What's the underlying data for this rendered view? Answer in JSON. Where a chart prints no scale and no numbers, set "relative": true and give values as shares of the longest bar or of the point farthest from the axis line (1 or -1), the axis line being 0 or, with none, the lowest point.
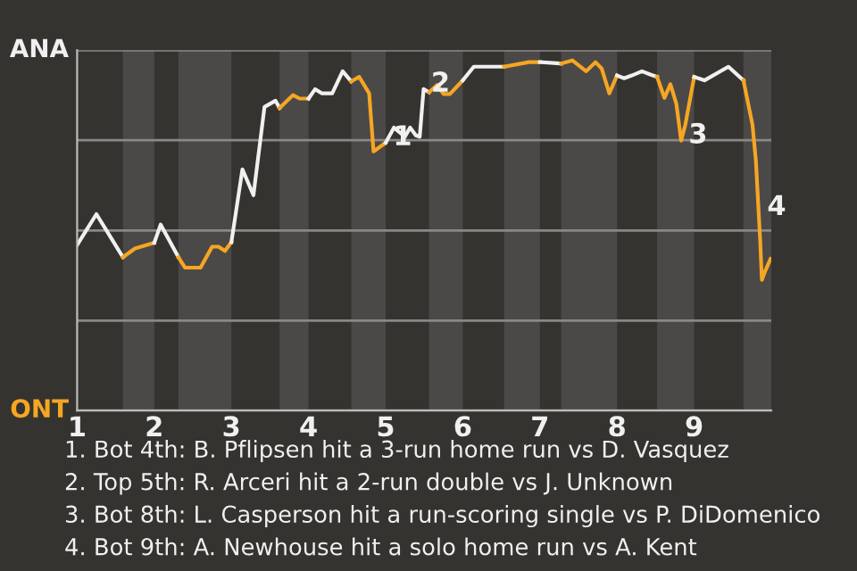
{
  "chart_data": {
    "type": "line",
    "relative": true,
    "xlim": [
      1,
      10
    ],
    "xticks": [
      1,
      2,
      3,
      4,
      5,
      6,
      7,
      8,
      9
    ],
    "series": [
      {
        "color": "#f0f0f0",
        "x": [
          1,
          1.25,
          1.594
        ],
        "values": [
          0.473,
          0.561,
          0.438
        ]
      },
      {
        "color": "#f5a623",
        "x": [
          1.594,
          1.75,
          2
        ],
        "values": [
          0.438,
          0.463,
          0.479
        ]
      },
      {
        "color": "#f0f0f0",
        "x": [
          2,
          2.083,
          2.313
        ],
        "values": [
          0.479,
          0.531,
          0.438
        ]
      },
      {
        "color": "#f5a623",
        "x": [
          2.313,
          2.4,
          2.6,
          2.75,
          2.833,
          2.917,
          3
        ],
        "values": [
          0.438,
          0.408,
          0.408,
          0.468,
          0.468,
          0.456,
          0.481
        ]
      },
      {
        "color": "#f0f0f0",
        "x": [
          3,
          3.143,
          3.286,
          3.429,
          3.571,
          3.625
        ],
        "values": [
          0.481,
          0.689,
          0.615,
          0.867,
          0.885,
          0.864
        ]
      },
      {
        "color": "#f5a623",
        "x": [
          3.625,
          3.8,
          3.886,
          4
        ],
        "values": [
          0.864,
          0.901,
          0.891,
          0.891
        ]
      },
      {
        "color": "#f0f0f0",
        "x": [
          4,
          4.086,
          4.171,
          4.307,
          4.443,
          4.554
        ],
        "values": [
          0.891,
          0.918,
          0.906,
          0.906,
          0.969,
          0.94
        ]
      },
      {
        "color": "#f5a623",
        "x": [
          4.554,
          4.657,
          4.786,
          4.843,
          5
        ],
        "values": [
          0.94,
          0.953,
          0.906,
          0.74,
          0.765
        ]
      },
      {
        "color": "#f0f0f0",
        "x": [
          5,
          5.108,
          5.25,
          5.317,
          5.392,
          5.442,
          5.492,
          5.563
        ],
        "values": [
          0.765,
          0.808,
          0.782,
          0.808,
          0.786,
          0.782,
          0.918,
          0.909
        ]
      },
      {
        "color": "#f5a623",
        "x": [
          5.563,
          5.667,
          5.75,
          5.833,
          6
        ],
        "values": [
          0.909,
          0.93,
          0.904,
          0.904,
          0.943
        ]
      },
      {
        "color": "#f0f0f0",
        "x": [
          6,
          6.143,
          6.536
        ],
        "values": [
          0.943,
          0.982,
          0.982
        ]
      },
      {
        "color": "#f5a623",
        "x": [
          6.536,
          6.857,
          7
        ],
        "values": [
          0.982,
          0.995,
          0.995
        ]
      },
      {
        "color": "#f0f0f0",
        "x": [
          7,
          7.275
        ],
        "values": [
          0.995,
          0.991
        ]
      },
      {
        "color": "#f5a623",
        "x": [
          7.275,
          7.42,
          7.6,
          7.72,
          7.8,
          7.9,
          8
        ],
        "values": [
          0.991,
          1,
          0.969,
          0.995,
          0.977,
          0.906,
          0.957
        ]
      },
      {
        "color": "#f0f0f0",
        "x": [
          8,
          8.092,
          8.192,
          8.323,
          8.438,
          8.519
        ],
        "values": [
          0.957,
          0.949,
          0.957,
          0.969,
          0.959,
          0.953
        ]
      },
      {
        "color": "#f5a623",
        "x": [
          8.519,
          8.615,
          8.692,
          8.769,
          8.831,
          8.885,
          9
        ],
        "values": [
          0.953,
          0.893,
          0.932,
          0.876,
          0.771,
          0.816,
          0.953
        ]
      },
      {
        "color": "#f0f0f0",
        "x": [
          9,
          9.133,
          9.444,
          9.639
        ],
        "values": [
          0.953,
          0.943,
          0.982,
          0.943
        ]
      },
      {
        "color": "#f5a623",
        "x": [
          9.639,
          9.756,
          9.8,
          9.856,
          9.878,
          9.922,
          9.989
        ],
        "values": [
          0.943,
          0.816,
          0.714,
          0.485,
          0.373,
          0.399,
          0.433
        ]
      }
    ],
    "ref_lines": [
      {
        "axis": "y",
        "value": 0,
        "label": "ONT",
        "color": "#8a8886"
      },
      {
        "axis": "y",
        "value": 0.257,
        "label": null
      },
      {
        "axis": "y",
        "value": 0.514,
        "label": null
      },
      {
        "axis": "y",
        "value": 0.772,
        "label": null
      },
      {
        "axis": "y",
        "value": 1.029,
        "label": "ANA",
        "color": "#8a8886"
      }
    ],
    "bands": [
      {
        "axis": "x",
        "from": 1.594,
        "to": 2,
        "color": "#4b4947"
      },
      {
        "axis": "x",
        "from": 2.313,
        "to": 3,
        "color": "#4b4947"
      },
      {
        "axis": "x",
        "from": 3.625,
        "to": 4,
        "color": "#4b4947"
      },
      {
        "axis": "x",
        "from": 4.554,
        "to": 5,
        "color": "#4b4947"
      },
      {
        "axis": "x",
        "from": 5.563,
        "to": 6,
        "color": "#4b4947"
      },
      {
        "axis": "x",
        "from": 6.536,
        "to": 7,
        "color": "#4b4947"
      },
      {
        "axis": "x",
        "from": 7.275,
        "to": 8,
        "color": "#4b4947"
      },
      {
        "axis": "x",
        "from": 8.519,
        "to": 9,
        "color": "#4b4947"
      },
      {
        "axis": "x",
        "from": 9.639,
        "to": 10,
        "color": "#4b4947"
      }
    ],
    "annotations": [
      {
        "text": "1",
        "x": 5,
        "y": 0.765
      },
      {
        "text": "2",
        "x": 5.492,
        "y": 0.918
      },
      {
        "text": "3",
        "x": 8.831,
        "y": 0.771
      },
      {
        "text": "4",
        "x": 9.85,
        "y": 0.566
      },
      "1. Bot 4th: B. Pflipsen hit a 3-run home run vs D. Vasquez",
      "2. Top 5th: R. Arceri hit a 2-run double vs J. Unknown",
      "3. Bot 8th: L. Casperson hit a run-scoring single vs P. DiDomenico",
      "4. Bot 9th: A. Newhouse hit a solo home run vs A. Kent"
    ]
  }
}
